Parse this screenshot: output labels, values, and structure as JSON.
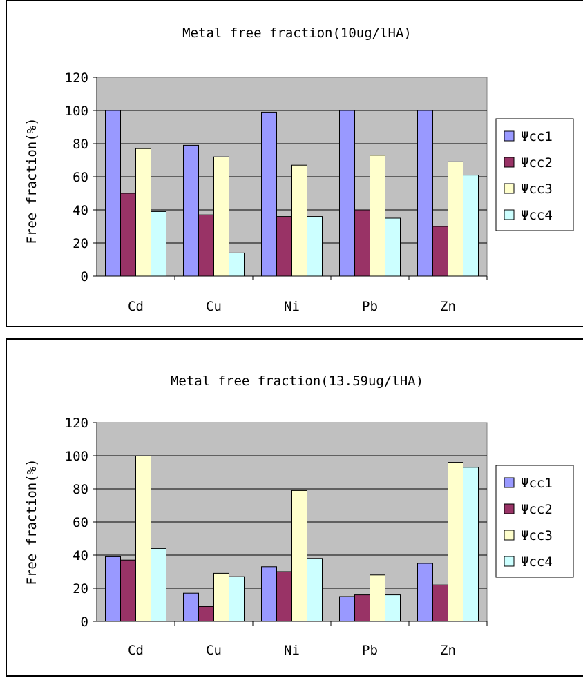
{
  "chart_data": [
    {
      "type": "bar",
      "title": "Metal free fraction(10ug/lHA)",
      "xlabel": "",
      "ylabel": "Free fraction(%)",
      "ylim": [
        0,
        120
      ],
      "yticks": [
        "0",
        "20",
        "40",
        "60",
        "80",
        "100",
        "120"
      ],
      "grid": true,
      "legend": "right",
      "categories": [
        "Cd",
        "Cu",
        "Ni",
        "Pb",
        "Zn"
      ],
      "series": [
        {
          "name": "Ψcc1",
          "color": "#9999ff",
          "values": [
            100,
            79,
            99,
            100,
            100
          ]
        },
        {
          "name": "Ψcc2",
          "color": "#993366",
          "values": [
            50,
            37,
            36,
            40,
            30
          ]
        },
        {
          "name": "Ψcc3",
          "color": "#ffffcc",
          "values": [
            77,
            72,
            67,
            73,
            69
          ]
        },
        {
          "name": "Ψcc4",
          "color": "#ccffff",
          "values": [
            39,
            14,
            36,
            35,
            61
          ]
        }
      ]
    },
    {
      "type": "bar",
      "title": "Metal free fraction(13.59ug/lHA)",
      "xlabel": "",
      "ylabel": "Free fraction(%)",
      "ylim": [
        0,
        120
      ],
      "yticks": [
        "0",
        "20",
        "40",
        "60",
        "80",
        "100",
        "120"
      ],
      "grid": true,
      "legend": "right",
      "categories": [
        "Cd",
        "Cu",
        "Ni",
        "Pb",
        "Zn"
      ],
      "series": [
        {
          "name": "Ψcc1",
          "color": "#9999ff",
          "values": [
            39,
            17,
            33,
            15,
            35
          ]
        },
        {
          "name": "Ψcc2",
          "color": "#993366",
          "values": [
            37,
            9,
            30,
            16,
            22
          ]
        },
        {
          "name": "Ψcc3",
          "color": "#ffffcc",
          "values": [
            100,
            29,
            79,
            28,
            96
          ]
        },
        {
          "name": "Ψcc4",
          "color": "#ccffff",
          "values": [
            44,
            27,
            38,
            16,
            93
          ]
        }
      ]
    }
  ],
  "style": {
    "plot_background": "#c0c0c0",
    "bar_outline": "#000000"
  }
}
